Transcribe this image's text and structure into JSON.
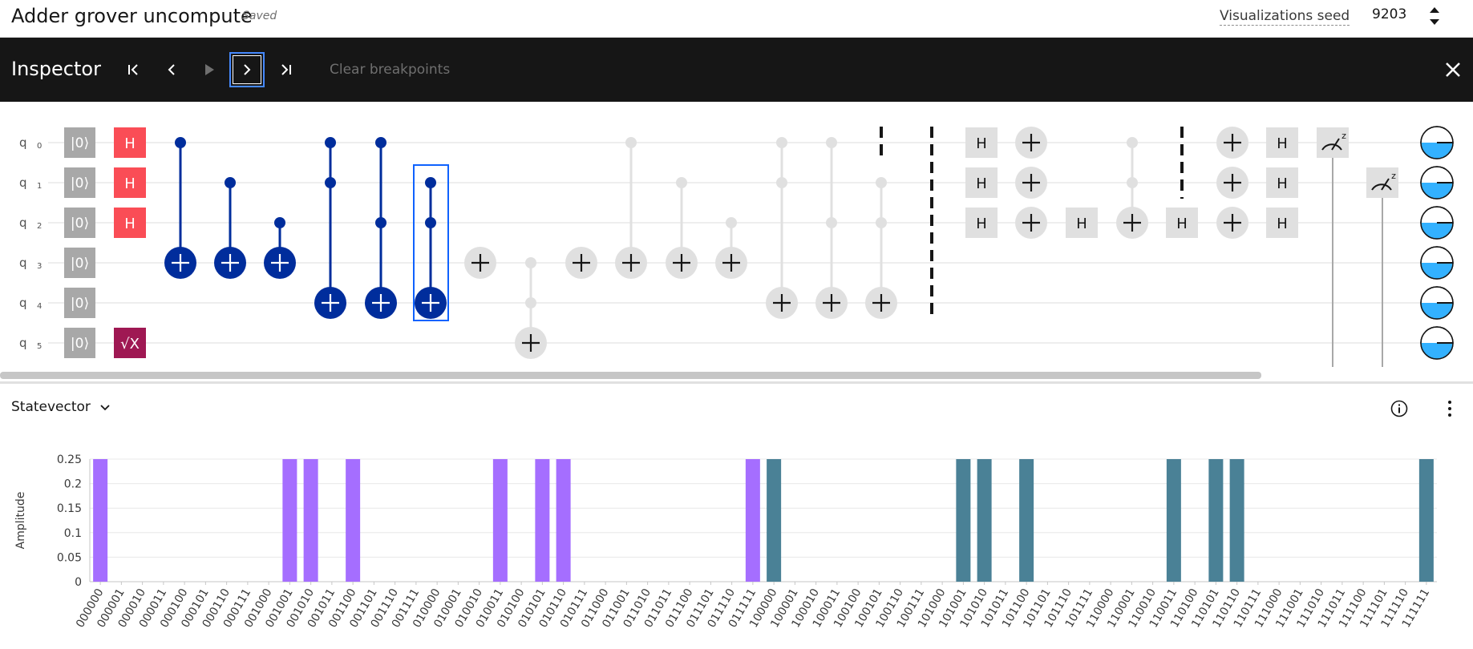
{
  "header": {
    "title": "Adder grover uncompute",
    "saved_label": "Saved",
    "seed_label": "Visualizations seed",
    "seed_value": "9203"
  },
  "inspector": {
    "title": "Inspector",
    "controls": [
      "first-step-icon",
      "previous-step-icon",
      "play-icon",
      "next-step-icon",
      "last-step-icon"
    ],
    "clear_breakpoints_label": "Clear breakpoints",
    "close_icon": "close-icon"
  },
  "circuit": {
    "qubits": [
      "q[0]",
      "q[1]",
      "q[2]",
      "q[3]",
      "q[4]",
      "q[5]"
    ],
    "init_label": "|0⟩",
    "colors": {
      "active": "#002d9c",
      "hadamard": "#fa4d56",
      "sqrtx": "#9f1853",
      "dim": "#e0e0e0",
      "init": "#a8a8a8"
    },
    "gate_labels": {
      "h": "H",
      "sqrtx": "√X",
      "measure_basis": "z"
    }
  },
  "statevector": {
    "select_label": "Statevector",
    "info_icon": "info-icon",
    "more_icon": "overflow-menu-icon",
    "ylabel": "Amplitude"
  },
  "chart_data": {
    "type": "bar",
    "ylabel": "Amplitude",
    "ylim": [
      0,
      0.25
    ],
    "yticks": [
      "0",
      "0.05",
      "0.1",
      "0.15",
      "0.2",
      "0.25"
    ],
    "categories": [
      "000000",
      "000001",
      "000010",
      "000011",
      "000100",
      "000101",
      "000110",
      "000111",
      "001000",
      "001001",
      "001010",
      "001011",
      "001100",
      "001101",
      "001110",
      "001111",
      "010000",
      "010001",
      "010010",
      "010011",
      "010100",
      "010101",
      "010110",
      "010111",
      "011000",
      "011001",
      "011010",
      "011011",
      "011100",
      "011101",
      "011110",
      "011111",
      "100000",
      "100001",
      "100010",
      "100011",
      "100100",
      "100101",
      "100110",
      "100111",
      "101000",
      "101001",
      "101010",
      "101011",
      "101100",
      "101101",
      "101110",
      "101111",
      "110000",
      "110001",
      "110010",
      "110011",
      "110100",
      "110101",
      "110110",
      "110111",
      "111000",
      "111001",
      "111010",
      "111011",
      "111100",
      "111101",
      "111110",
      "111111"
    ],
    "values": [
      0.25,
      0,
      0,
      0,
      0,
      0,
      0,
      0,
      0,
      0.25,
      0.25,
      0,
      0.25,
      0,
      0,
      0,
      0,
      0,
      0,
      0.25,
      0,
      0.25,
      0.25,
      0,
      0,
      0,
      0,
      0,
      0,
      0,
      0,
      0.25,
      0.25,
      0,
      0,
      0,
      0,
      0,
      0,
      0,
      0,
      0.25,
      0.25,
      0,
      0.25,
      0,
      0,
      0,
      0,
      0,
      0,
      0.25,
      0,
      0.25,
      0.25,
      0,
      0,
      0,
      0,
      0,
      0,
      0,
      0,
      0.25
    ],
    "colors": [
      "#a56eff",
      "#a56eff",
      "#a56eff",
      "#a56eff",
      "#a56eff",
      "#a56eff",
      "#a56eff",
      "#a56eff",
      "#a56eff",
      "#a56eff",
      "#a56eff",
      "#a56eff",
      "#a56eff",
      "#a56eff",
      "#a56eff",
      "#a56eff",
      "#a56eff",
      "#a56eff",
      "#a56eff",
      "#a56eff",
      "#a56eff",
      "#a56eff",
      "#a56eff",
      "#a56eff",
      "#a56eff",
      "#a56eff",
      "#a56eff",
      "#a56eff",
      "#a56eff",
      "#a56eff",
      "#a56eff",
      "#a56eff",
      "#4a8196",
      "#4a8196",
      "#4a8196",
      "#4a8196",
      "#4a8196",
      "#4a8196",
      "#4a8196",
      "#4a8196",
      "#4a8196",
      "#4a8196",
      "#4a8196",
      "#4a8196",
      "#4a8196",
      "#4a8196",
      "#4a8196",
      "#4a8196",
      "#4a8196",
      "#4a8196",
      "#4a8196",
      "#4a8196",
      "#4a8196",
      "#4a8196",
      "#4a8196",
      "#4a8196",
      "#4a8196",
      "#4a8196",
      "#4a8196",
      "#4a8196",
      "#4a8196",
      "#4a8196",
      "#4a8196",
      "#4a8196"
    ],
    "grid": true
  }
}
